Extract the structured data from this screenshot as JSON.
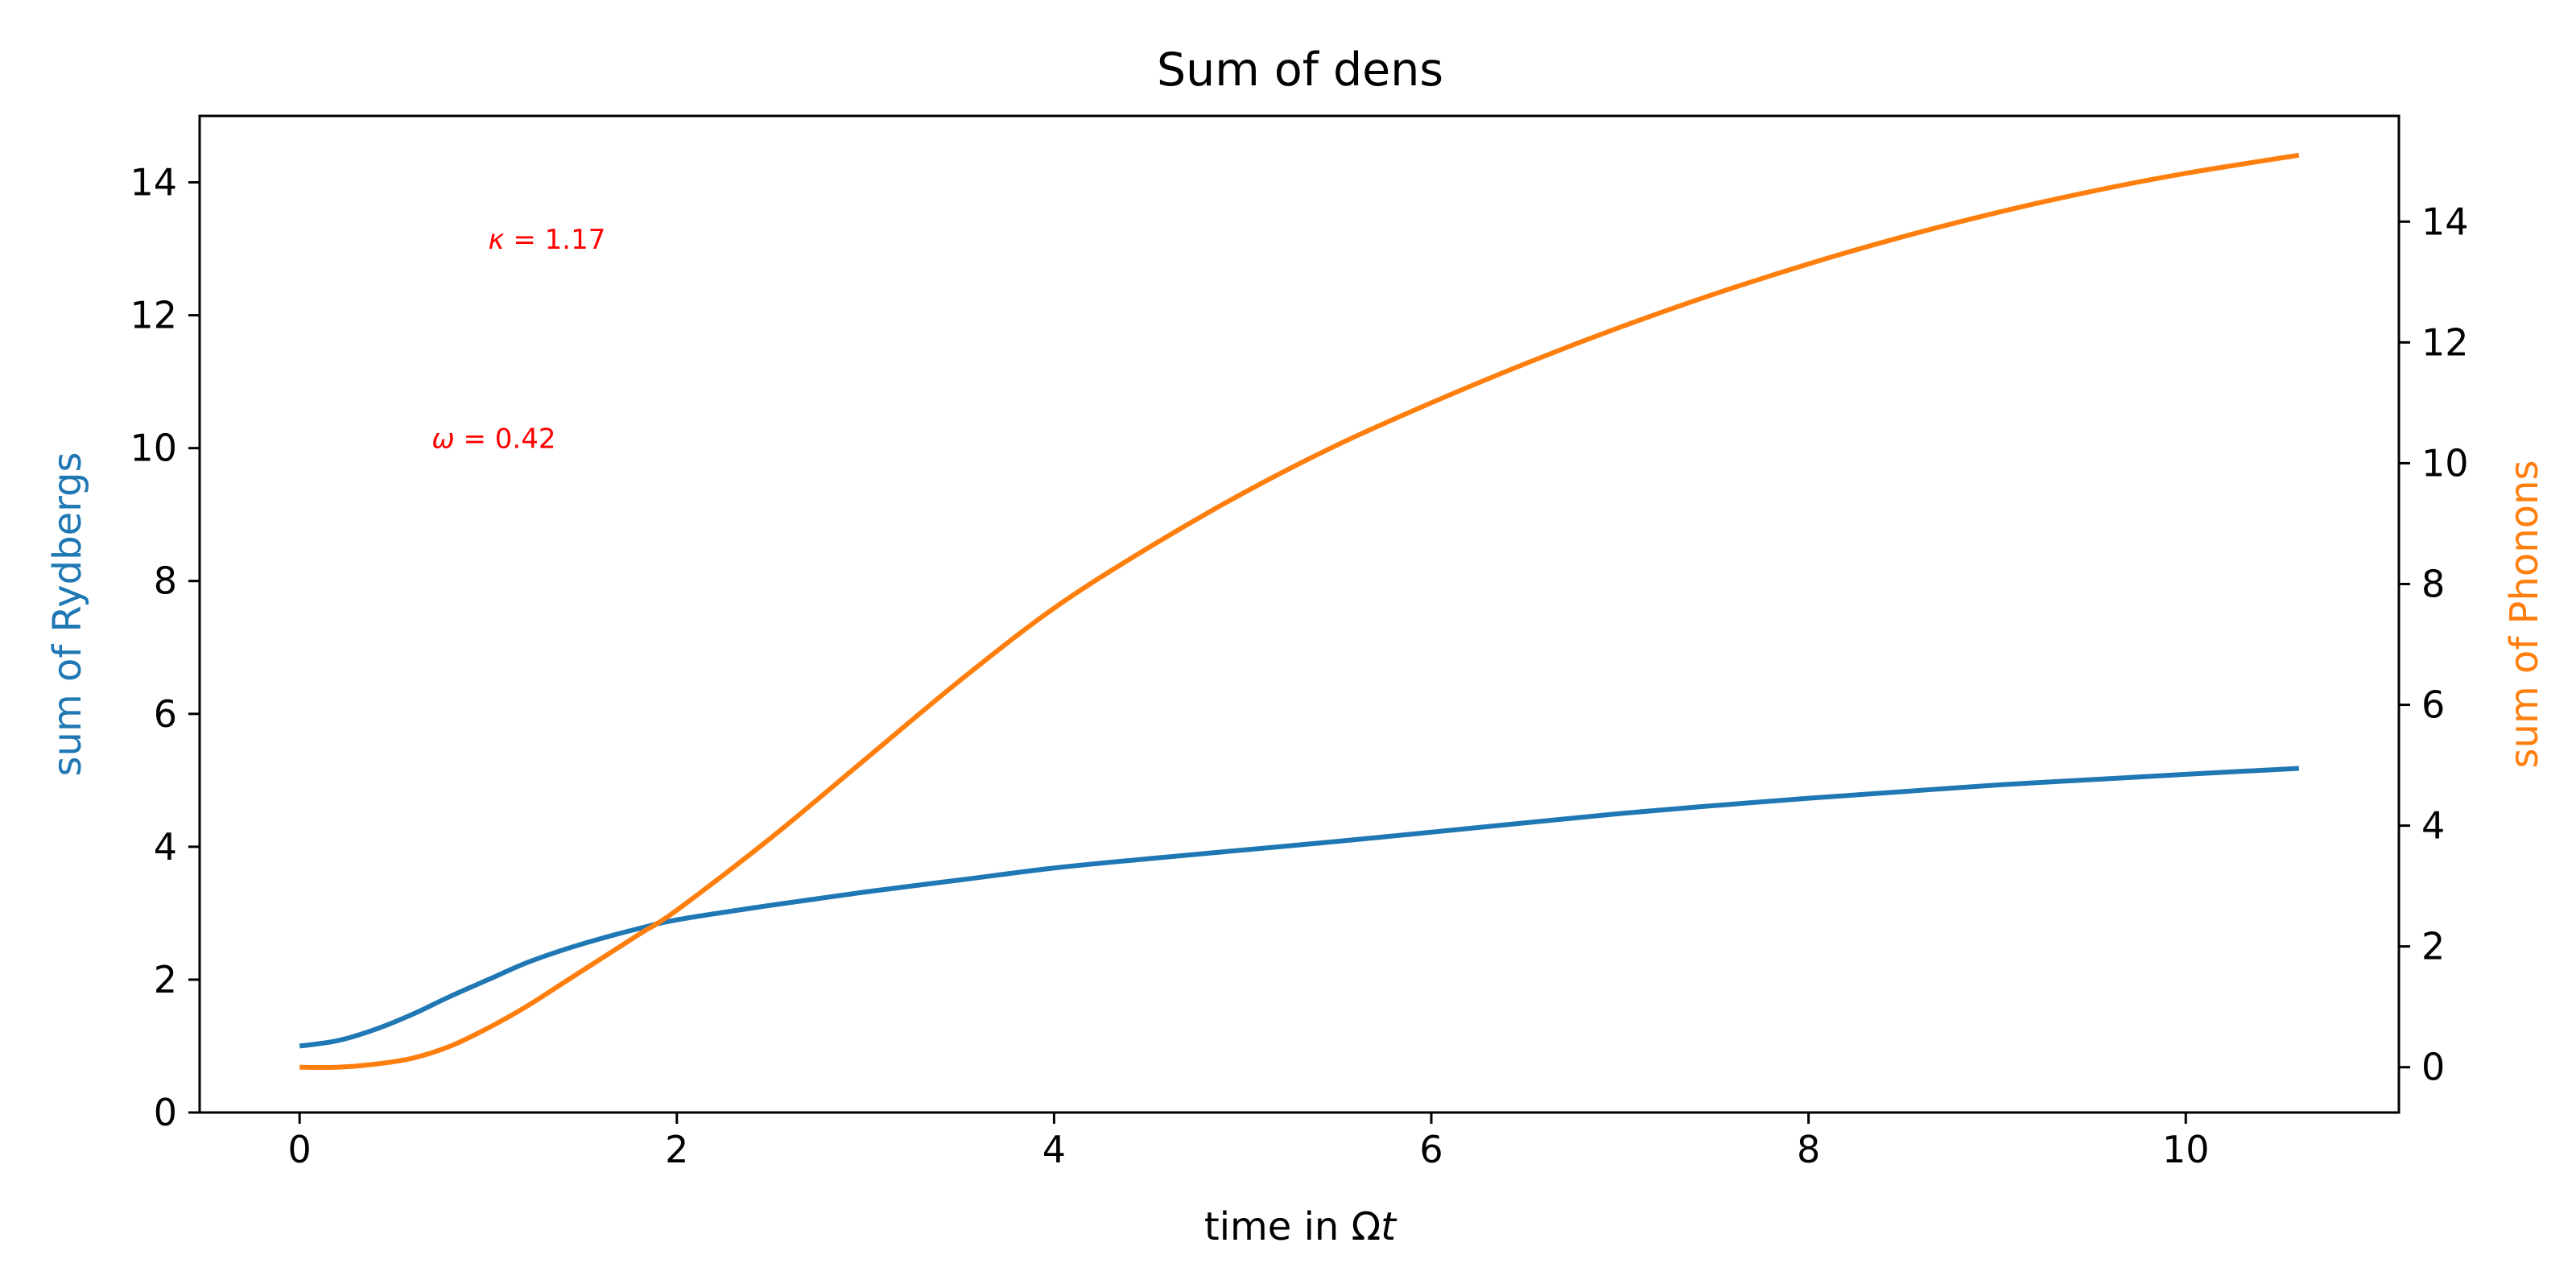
{
  "chart_data": {
    "type": "line",
    "title": "Sum of dens",
    "xlabel_prefix": "time in Ω",
    "xlabel_var": "t",
    "ylabel_left": "sum of Rydbergs",
    "ylabel_right": "sum of Phonons",
    "xlim": [
      -0.53,
      11.13
    ],
    "ylim_left": [
      0,
      15
    ],
    "ylim_right": [
      -0.75,
      15.75
    ],
    "x_ticks": [
      0,
      2,
      4,
      6,
      8,
      10
    ],
    "y_ticks_left": [
      0,
      2,
      4,
      6,
      8,
      10,
      12,
      14
    ],
    "y_ticks_right": [
      0,
      2,
      4,
      6,
      8,
      10,
      12,
      14
    ],
    "grid": false,
    "series": [
      {
        "name": "Rydbergs",
        "axis": "left",
        "color": "#1f77b4",
        "x": [
          0,
          0.2,
          0.4,
          0.6,
          0.8,
          1.0,
          1.2,
          1.4,
          1.6,
          1.8,
          2.0,
          2.5,
          3.0,
          3.5,
          4.0,
          4.5,
          5.0,
          5.5,
          6.0,
          6.5,
          7.0,
          7.5,
          8.0,
          8.5,
          9.0,
          9.5,
          10.0,
          10.6
        ],
        "y": [
          1.0,
          1.08,
          1.25,
          1.48,
          1.75,
          2.0,
          2.25,
          2.45,
          2.62,
          2.77,
          2.9,
          3.12,
          3.32,
          3.5,
          3.68,
          3.82,
          3.95,
          4.08,
          4.22,
          4.36,
          4.5,
          4.62,
          4.73,
          4.83,
          4.93,
          5.01,
          5.09,
          5.18
        ]
      },
      {
        "name": "Phonons",
        "axis": "right",
        "color": "#ff7f0e",
        "x": [
          0,
          0.2,
          0.4,
          0.6,
          0.8,
          1.0,
          1.2,
          1.4,
          1.6,
          1.8,
          2.0,
          2.5,
          3.0,
          3.5,
          4.0,
          4.5,
          5.0,
          5.5,
          6.0,
          6.5,
          7.0,
          7.5,
          8.0,
          8.5,
          9.0,
          9.5,
          10.0,
          10.6
        ],
        "y": [
          0.0,
          0.0,
          0.05,
          0.15,
          0.35,
          0.65,
          1.0,
          1.4,
          1.8,
          2.2,
          2.6,
          3.8,
          5.1,
          6.4,
          7.6,
          8.6,
          9.5,
          10.3,
          11.0,
          11.65,
          12.25,
          12.8,
          13.3,
          13.75,
          14.15,
          14.5,
          14.8,
          15.1
        ]
      }
    ],
    "annotations": [
      {
        "symbol": "κ",
        "text": " = 1.17",
        "x": 1.0,
        "y": 13.0,
        "color": "#ff0000"
      },
      {
        "symbol": "ω",
        "text": " = 0.42",
        "x": 0.7,
        "y": 10.0,
        "color": "#ff0000"
      }
    ]
  }
}
